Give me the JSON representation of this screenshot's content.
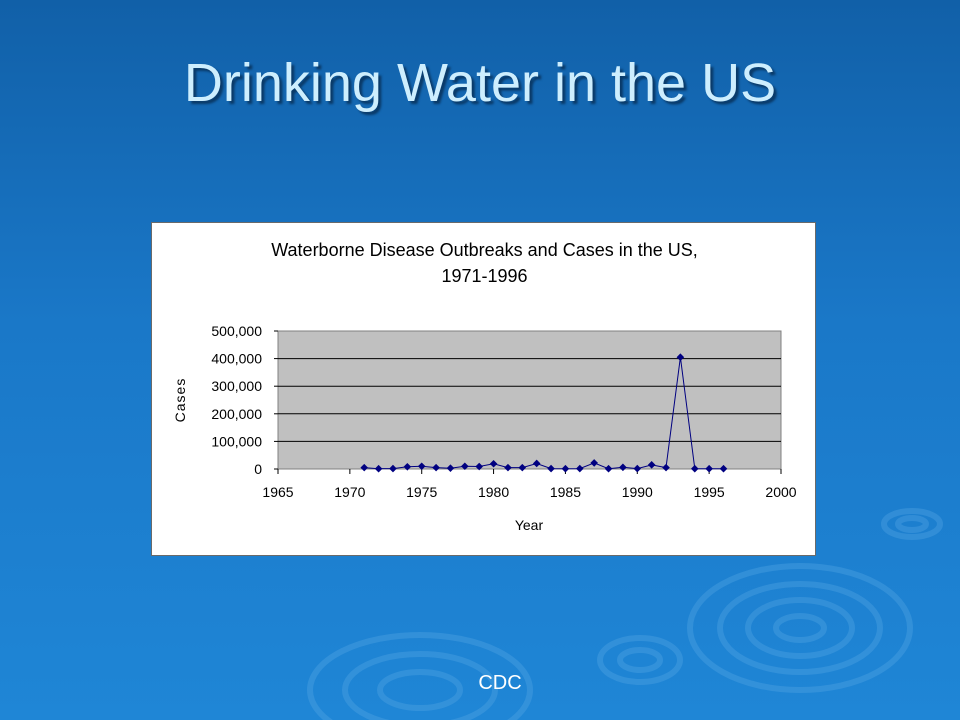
{
  "slide": {
    "title": "Drinking Water in the US",
    "source": "CDC"
  },
  "colors": {
    "background": "#1a78c8",
    "title_text": "#cdeefe",
    "plot_area": "#c0c0c0",
    "series": "#000080"
  },
  "chart_data": {
    "type": "line",
    "title_line1": "Waterborne Disease Outbreaks and Cases in the US,",
    "title_line2": "1971-1996",
    "xlabel": "Year",
    "ylabel": "Cases",
    "xlim": [
      1965,
      2000
    ],
    "ylim": [
      0,
      500000
    ],
    "x_ticks": [
      1965,
      1970,
      1975,
      1980,
      1985,
      1990,
      1995,
      2000
    ],
    "x_tick_labels": [
      "1965",
      "1970",
      "1975",
      "1980",
      "1985",
      "1990",
      "1995",
      "2000"
    ],
    "y_ticks": [
      0,
      100000,
      200000,
      300000,
      400000,
      500000
    ],
    "y_tick_labels": [
      "0",
      "100,000",
      "200,000",
      "300,000",
      "400,000",
      "500,000"
    ],
    "grid": true,
    "legend": "none",
    "series": [
      {
        "x": [
          1971,
          1972,
          1973,
          1974,
          1975,
          1976,
          1977,
          1978,
          1979,
          1980,
          1981,
          1982,
          1983,
          1984,
          1985,
          1986,
          1987,
          1988,
          1989,
          1990,
          1991,
          1992,
          1993,
          1994,
          1995,
          1996
        ],
        "values": [
          5000,
          1000,
          1500,
          8000,
          10000,
          5000,
          3000,
          10000,
          9000,
          19000,
          5000,
          5000,
          20000,
          1500,
          1000,
          1500,
          22000,
          1000,
          6000,
          1500,
          15000,
          5000,
          405000,
          1000,
          1000,
          1000
        ]
      }
    ]
  }
}
